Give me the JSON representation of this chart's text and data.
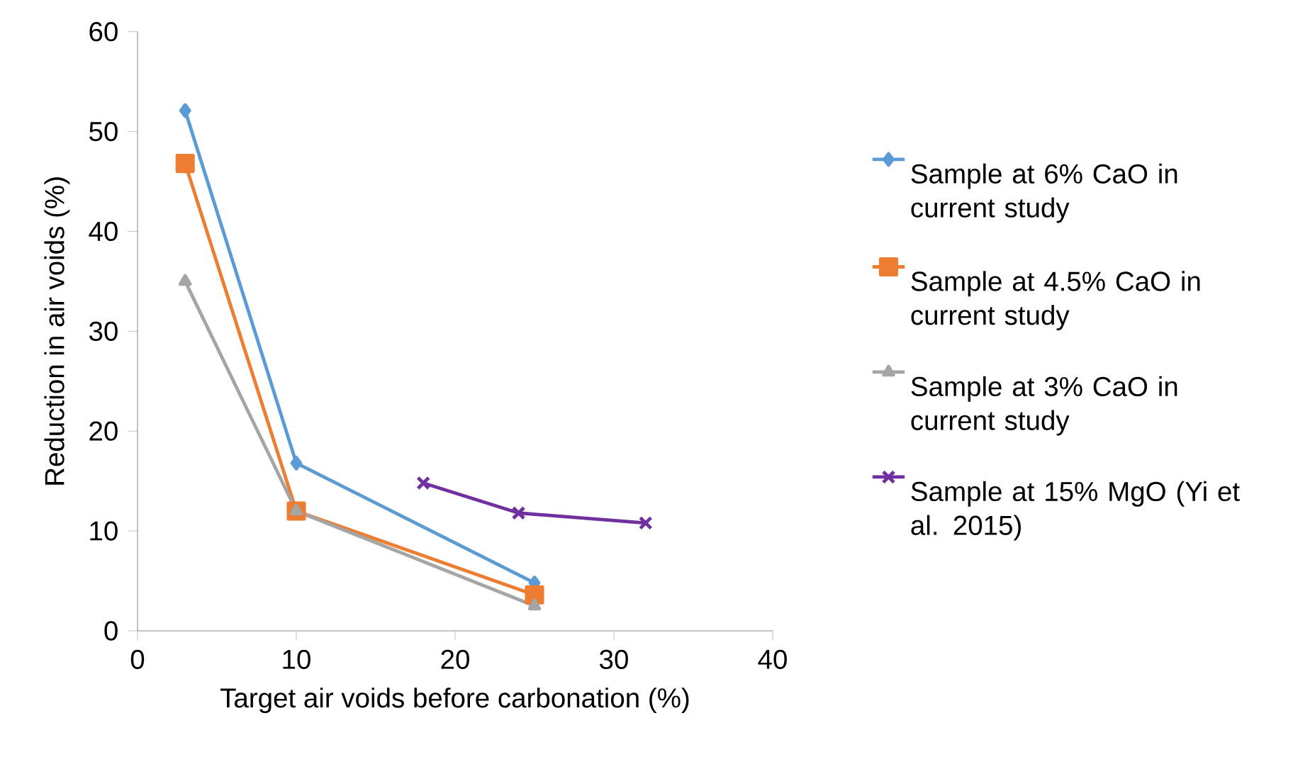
{
  "chart_data": {
    "type": "line",
    "xlabel": "Target air voids before carbonation (%)",
    "ylabel": "Reduction in air voids (%)",
    "xlim": [
      0,
      40
    ],
    "ylim": [
      0,
      60
    ],
    "xticks": [
      0,
      10,
      20,
      30,
      40
    ],
    "yticks": [
      0,
      10,
      20,
      30,
      40,
      50,
      60
    ],
    "legend": "right",
    "line_style": "solid",
    "series": [
      {
        "name": "Sample at 6% CaO in current study",
        "color": "#5b9bd5",
        "marker": "diamond",
        "x": [
          3,
          10,
          25
        ],
        "values": [
          52.1,
          16.8,
          4.8
        ]
      },
      {
        "name": "Sample at 4.5% CaO in current study",
        "color": "#ed7d31",
        "marker": "square",
        "x": [
          3,
          10,
          25
        ],
        "values": [
          46.8,
          12.0,
          3.6
        ]
      },
      {
        "name": "Sample at 3% CaO in current study",
        "color": "#a5a5a5",
        "marker": "triangle",
        "x": [
          3,
          10,
          25
        ],
        "values": [
          35.0,
          12.0,
          2.5
        ]
      },
      {
        "name": "Sample at 15% MgO (Yi et al. 2015)",
        "color": "#7030a0",
        "marker": "cross",
        "x": [
          18,
          24,
          32
        ],
        "values": [
          14.8,
          11.8,
          10.8
        ]
      }
    ]
  }
}
